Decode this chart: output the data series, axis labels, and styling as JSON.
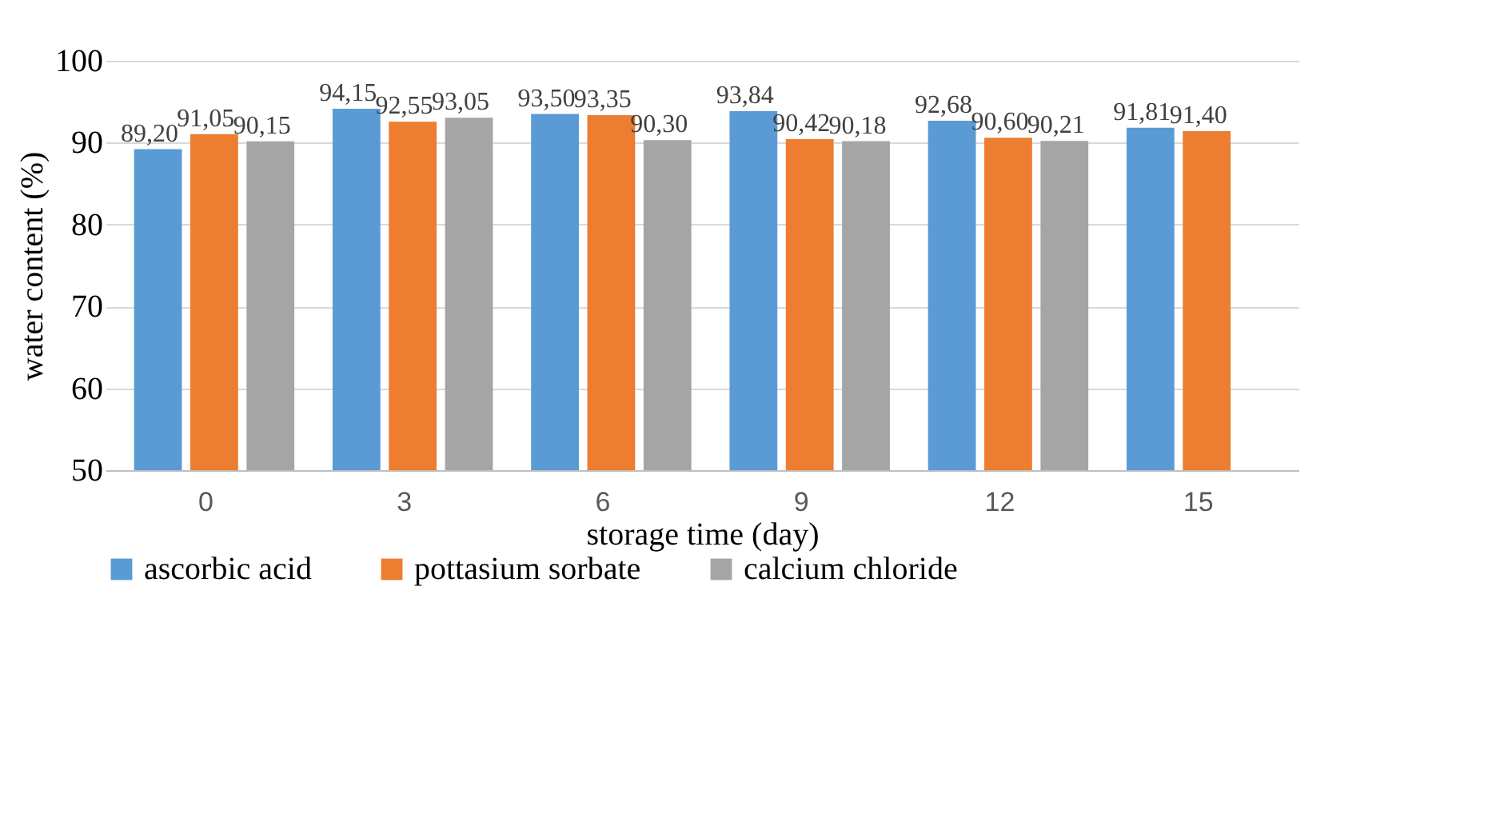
{
  "chart_data": {
    "type": "bar",
    "xlabel": "storage time (day)",
    "ylabel": "water content (%)",
    "categories": [
      "0",
      "3",
      "6",
      "9",
      "12",
      "15"
    ],
    "series": [
      {
        "name": "ascorbic acid",
        "color": "#5b9bd5",
        "values": [
          89.2,
          94.15,
          93.5,
          93.84,
          92.68,
          91.81
        ],
        "value_labels": [
          "89,20",
          "94,15",
          "93,50",
          "93,84",
          "92,68",
          "91,81"
        ]
      },
      {
        "name": "pottasium sorbate",
        "color": "#ed7d31",
        "values": [
          91.05,
          92.55,
          93.35,
          90.42,
          90.6,
          91.4
        ],
        "value_labels": [
          "91,05",
          "92,55",
          "93,35",
          "90,42",
          "90,60",
          "91,40"
        ]
      },
      {
        "name": "calcium chloride",
        "color": "#a5a5a5",
        "values": [
          90.15,
          93.05,
          90.3,
          90.18,
          90.21,
          null
        ],
        "value_labels": [
          "90,15",
          "93,05",
          "90,30",
          "90,18",
          "90,21",
          null
        ]
      }
    ],
    "ylim": [
      50,
      100
    ],
    "yticks": [
      50,
      60,
      70,
      80,
      90,
      100
    ],
    "grid": "y",
    "legend": "bottom"
  }
}
